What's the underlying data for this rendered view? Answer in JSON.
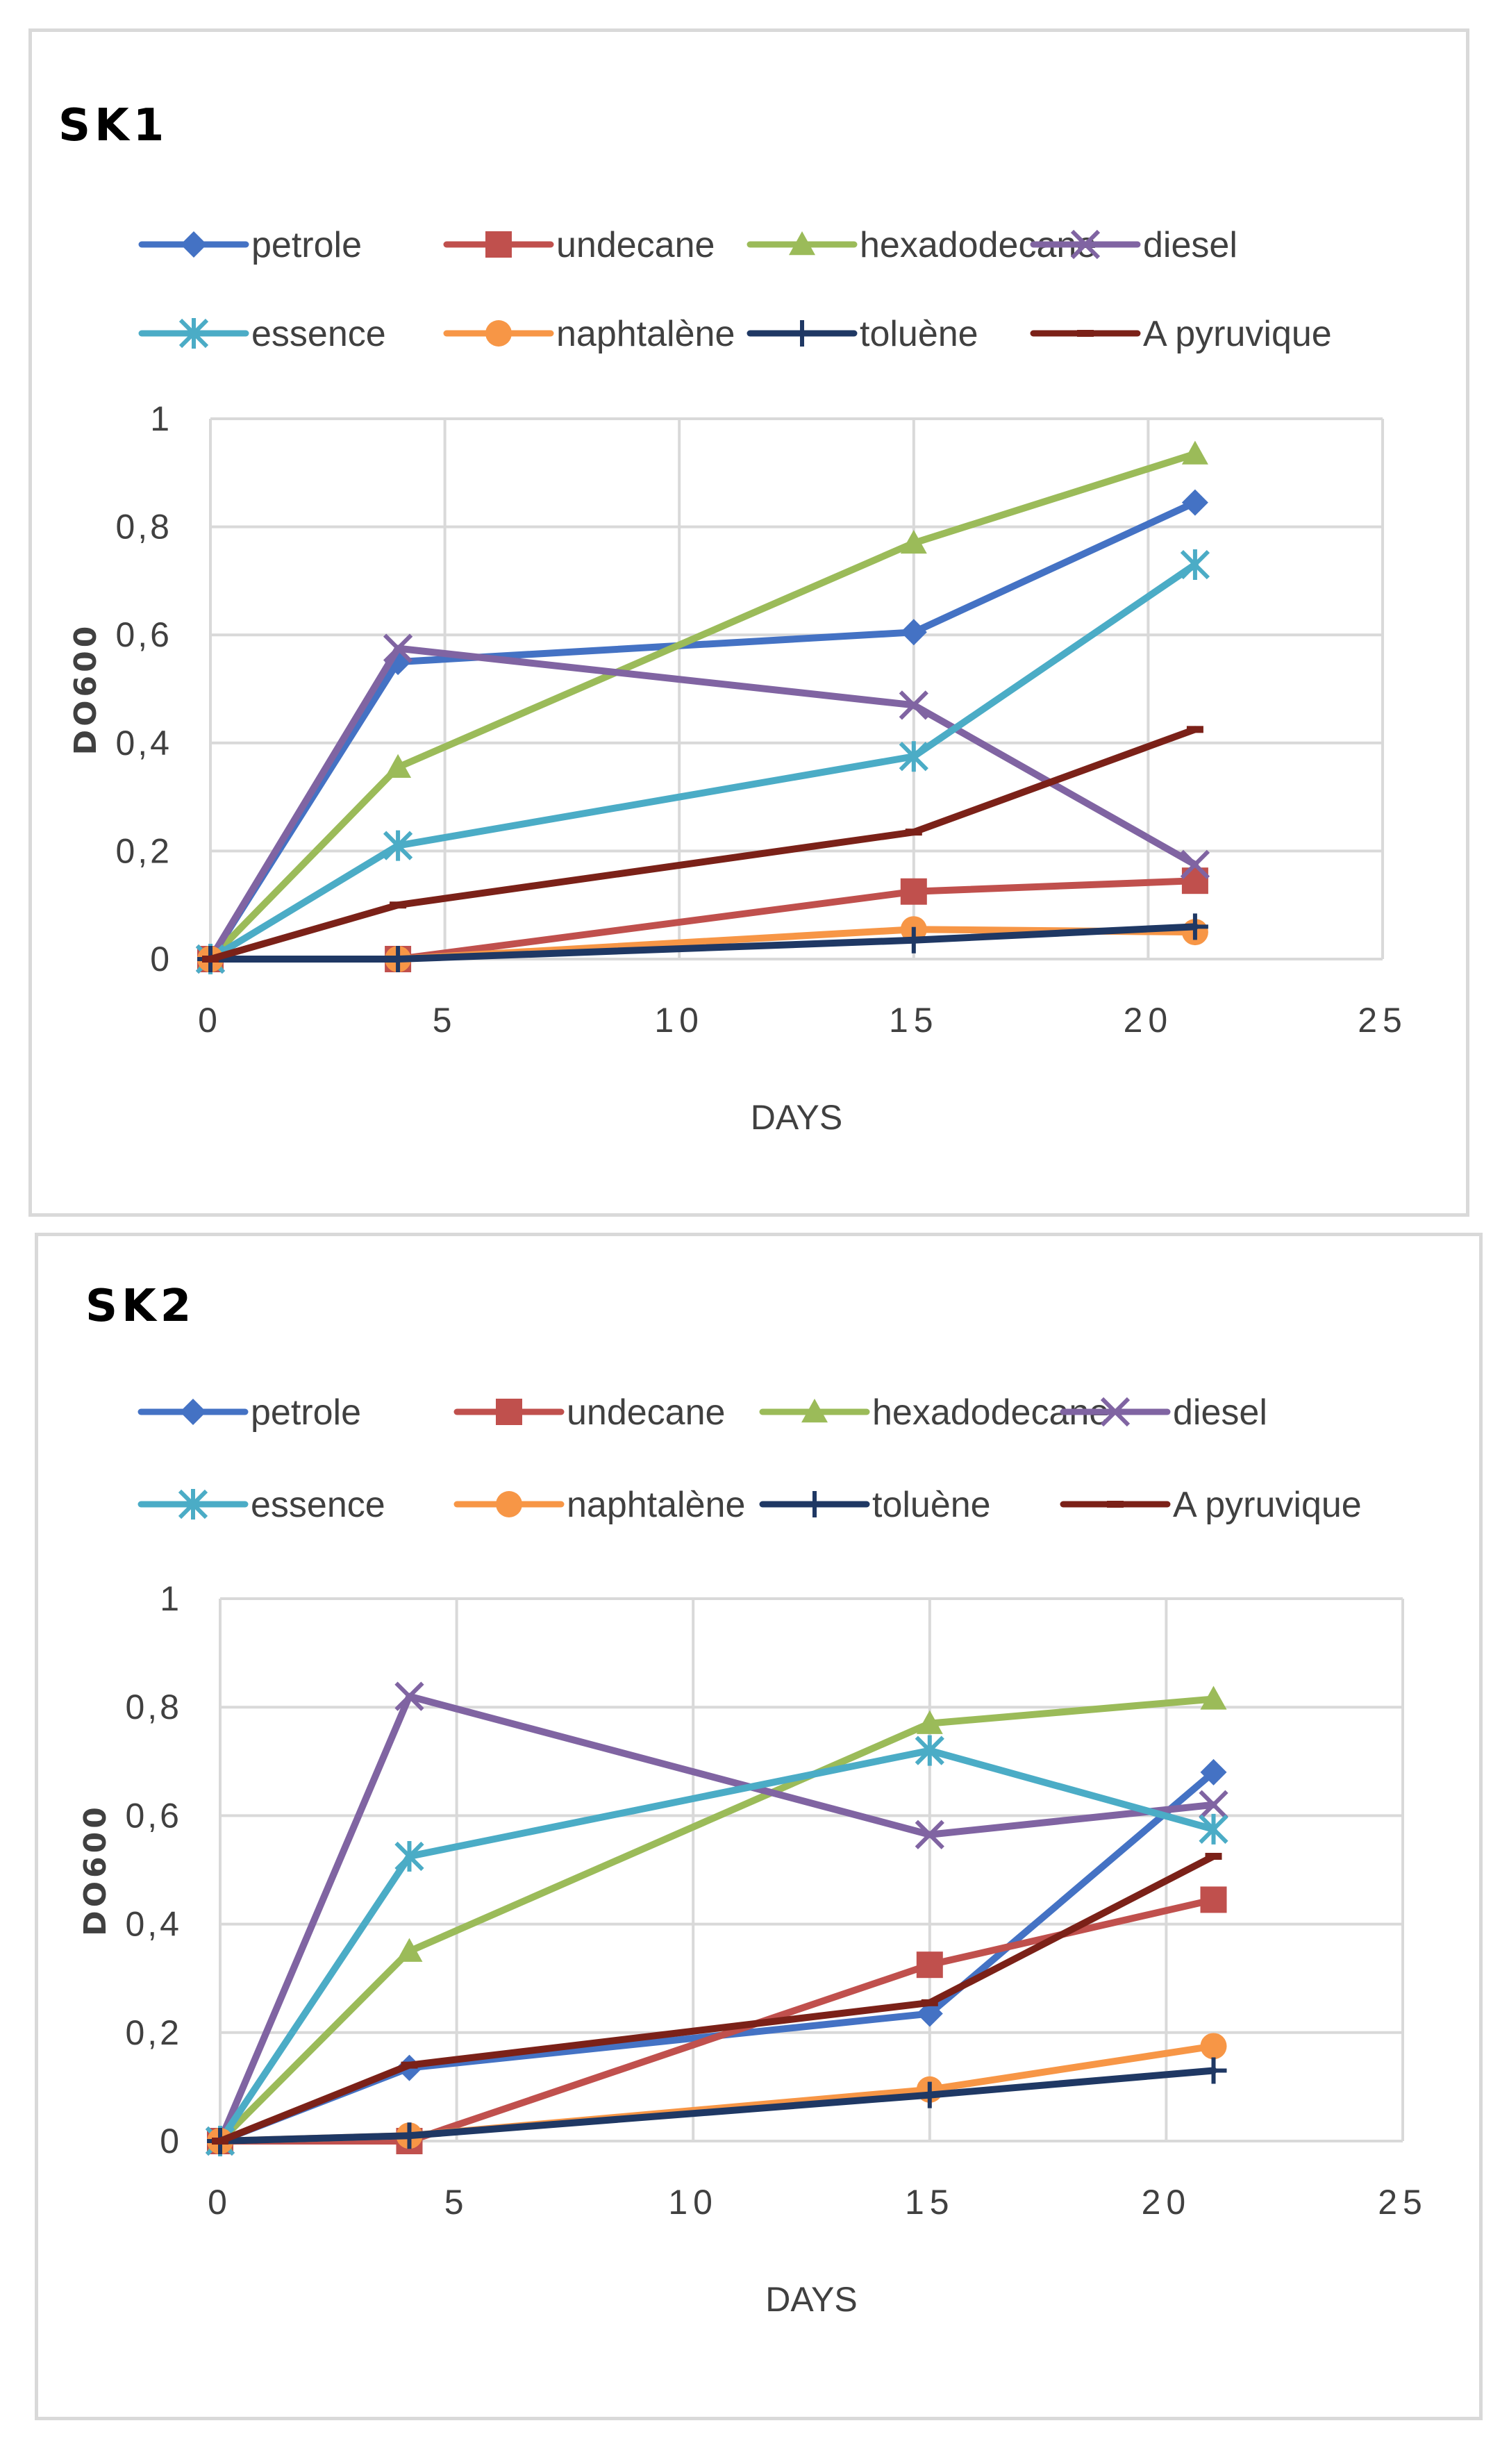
{
  "chart_data": [
    {
      "type": "line",
      "title": "SK1",
      "xlabel": "DAYS",
      "ylabel": "DO600",
      "xlim": [
        0,
        25
      ],
      "ylim": [
        0,
        1
      ],
      "x_ticks": [
        "0",
        "5",
        "10",
        "15",
        "20",
        "25"
      ],
      "y_ticks": [
        "0",
        "0,2",
        "0,4",
        "0,6",
        "0,8",
        "1"
      ],
      "grid": true,
      "legend_position": "top",
      "x": [
        0,
        4,
        15,
        21
      ],
      "series": [
        {
          "name": "petrole",
          "color": "#4472c4",
          "marker": "diamond",
          "values": [
            0,
            0.55,
            0.605,
            0.845
          ]
        },
        {
          "name": "undecane",
          "color": "#c0504d",
          "marker": "square",
          "values": [
            0,
            0,
            0.125,
            0.145
          ]
        },
        {
          "name": "hexadodecane",
          "color": "#9bbb59",
          "marker": "triangle",
          "values": [
            0,
            0.355,
            0.77,
            0.935
          ]
        },
        {
          "name": "diesel",
          "color": "#8064a2",
          "marker": "x",
          "values": [
            0,
            0.575,
            0.47,
            0.175
          ]
        },
        {
          "name": "essence",
          "color": "#4bacc6",
          "marker": "asterisk",
          "values": [
            0,
            0.21,
            0.375,
            0.73
          ]
        },
        {
          "name": "naphtalène",
          "color": "#f79646",
          "marker": "circle",
          "values": [
            0,
            0,
            0.055,
            0.05
          ]
        },
        {
          "name": "toluène",
          "color": "#1f3864",
          "marker": "plus",
          "values": [
            0,
            0,
            0.035,
            0.06
          ]
        },
        {
          "name": "A pyruvique",
          "color": "#7b2118",
          "marker": "dash",
          "values": [
            0,
            0.1,
            0.235,
            0.425
          ]
        }
      ]
    },
    {
      "type": "line",
      "title": "SK2",
      "xlabel": "DAYS",
      "ylabel": "DO600",
      "xlim": [
        0,
        25
      ],
      "ylim": [
        0,
        1
      ],
      "x_ticks": [
        "0",
        "5",
        "10",
        "15",
        "20",
        "25"
      ],
      "y_ticks": [
        "0",
        "0,2",
        "0,4",
        "0,6",
        "0,8",
        "1"
      ],
      "grid": true,
      "legend_position": "top",
      "x": [
        0,
        4,
        15,
        21
      ],
      "series": [
        {
          "name": "petrole",
          "color": "#4472c4",
          "marker": "diamond",
          "values": [
            0,
            0.135,
            0.235,
            0.68
          ]
        },
        {
          "name": "undecane",
          "color": "#c0504d",
          "marker": "square",
          "values": [
            0,
            0,
            0.325,
            0.445
          ]
        },
        {
          "name": "hexadodecane",
          "color": "#9bbb59",
          "marker": "triangle",
          "values": [
            0,
            0.35,
            0.77,
            0.815
          ]
        },
        {
          "name": "diesel",
          "color": "#8064a2",
          "marker": "x",
          "values": [
            0,
            0.82,
            0.565,
            0.62
          ]
        },
        {
          "name": "essence",
          "color": "#4bacc6",
          "marker": "asterisk",
          "values": [
            0,
            0.525,
            0.72,
            0.575
          ]
        },
        {
          "name": "naphtalène",
          "color": "#f79646",
          "marker": "circle",
          "values": [
            0,
            0.01,
            0.095,
            0.175
          ]
        },
        {
          "name": "toluène",
          "color": "#1f3864",
          "marker": "plus",
          "values": [
            0,
            0.01,
            0.085,
            0.13
          ]
        },
        {
          "name": "A pyruvique",
          "color": "#7b2118",
          "marker": "dash",
          "values": [
            0,
            0.14,
            0.255,
            0.525
          ]
        }
      ]
    }
  ]
}
